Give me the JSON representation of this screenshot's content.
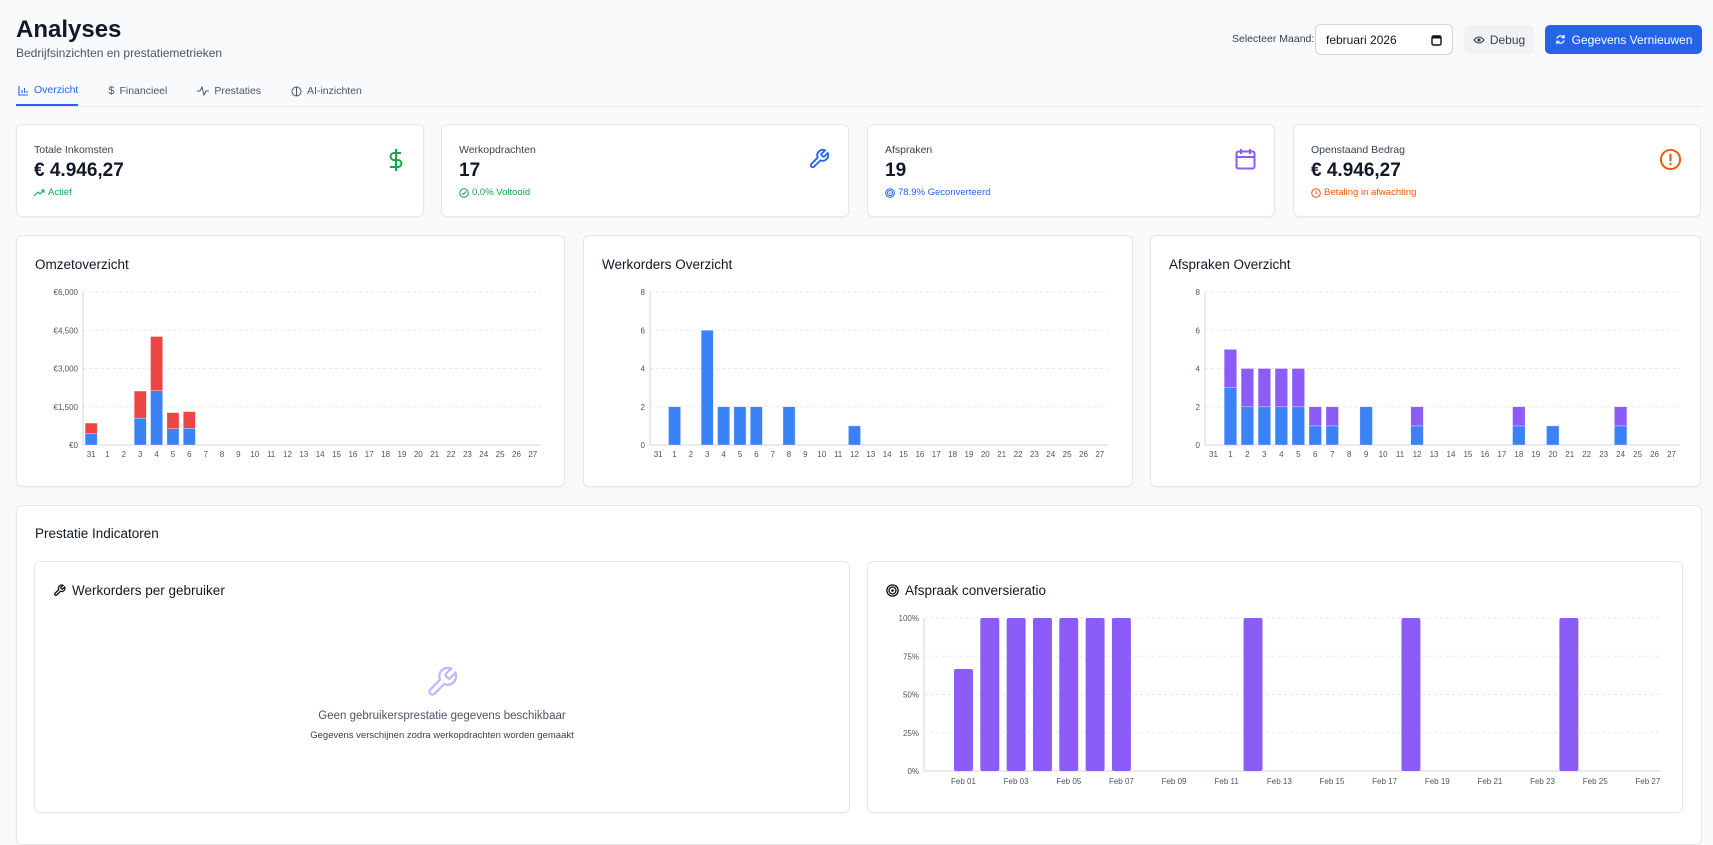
{
  "header": {
    "title": "Analyses",
    "subtitle": "Bedrijfsinzichten en prestatiemetrieken",
    "month_label": "Selecteer Maand:",
    "month_value": "februari 2026",
    "debug_label": "Debug",
    "refresh_label": "Gegevens Vernieuwen",
    "accent": "#2563eb"
  },
  "tabs": [
    {
      "label": "Overzicht",
      "icon": "bar-chart-icon",
      "active": true
    },
    {
      "label": "Financieel",
      "icon": "dollar-icon",
      "active": false
    },
    {
      "label": "Prestaties",
      "icon": "activity-icon",
      "active": false
    },
    {
      "label": "AI-inzichten",
      "icon": "brain-icon",
      "active": false
    }
  ],
  "stats": [
    {
      "label": "Totale Inkomsten",
      "value": "€ 4.946,27",
      "sub": "Actief",
      "icon": "dollar-icon",
      "sub_icon": "trending-up-icon",
      "color": "#16a34a"
    },
    {
      "label": "Werkopdrachten",
      "value": "17",
      "sub": "0.0% Voltooid",
      "icon": "wrench-icon",
      "sub_icon": "check-circle-icon",
      "color": "#2563eb",
      "sub_color": "#16a34a"
    },
    {
      "label": "Afspraken",
      "value": "19",
      "sub": "78.9% Geconverteerd",
      "icon": "calendar-icon",
      "sub_icon": "target-icon",
      "color": "#8b5cf6",
      "sub_color": "#2563eb"
    },
    {
      "label": "Openstaand Bedrag",
      "value": "€ 4.946,27",
      "sub": "Betaling in afwachting",
      "icon": "alert-circle-icon",
      "sub_icon": "clock-icon",
      "color": "#ea580c"
    }
  ],
  "performance": {
    "title": "Prestatie Indicatoren",
    "users_title": "Werkorders per gebruiker",
    "empty_title": "Geen gebruikersprestatie gegevens beschikbaar",
    "empty_sub": "Gegevens verschijnen zodra werkopdrachten worden gemaakt"
  },
  "chart_data": [
    {
      "type": "bar",
      "stacked": true,
      "title": "Omzetoverzicht",
      "categories": [
        "31",
        "1",
        "2",
        "3",
        "4",
        "5",
        "6",
        "7",
        "8",
        "9",
        "10",
        "11",
        "12",
        "13",
        "14",
        "15",
        "16",
        "17",
        "18",
        "19",
        "20",
        "21",
        "22",
        "23",
        "24",
        "25",
        "26",
        "27"
      ],
      "yticks": [
        "€0",
        "€1,500",
        "€3,000",
        "€4,500",
        "€6,000"
      ],
      "ylim": [
        0,
        6000
      ],
      "grid": true,
      "series": [
        {
          "color": "#3b82f6",
          "values": [
            450,
            0,
            0,
            1050,
            2130,
            640,
            655,
            0,
            0,
            0,
            0,
            0,
            0,
            0,
            0,
            0,
            0,
            0,
            0,
            0,
            0,
            0,
            0,
            0,
            0,
            0,
            0,
            0
          ]
        },
        {
          "color": "#ef4444",
          "values": [
            410,
            0,
            0,
            1065,
            2125,
            630,
            655,
            0,
            0,
            0,
            0,
            0,
            0,
            0,
            0,
            0,
            0,
            0,
            0,
            0,
            0,
            0,
            0,
            0,
            0,
            0,
            0,
            0
          ]
        }
      ]
    },
    {
      "type": "bar",
      "stacked": false,
      "title": "Werkorders Overzicht",
      "categories": [
        "31",
        "1",
        "2",
        "3",
        "4",
        "5",
        "6",
        "7",
        "8",
        "9",
        "10",
        "11",
        "12",
        "13",
        "14",
        "15",
        "16",
        "17",
        "18",
        "19",
        "20",
        "21",
        "22",
        "23",
        "24",
        "25",
        "26",
        "27"
      ],
      "yticks": [
        "0",
        "2",
        "4",
        "6",
        "8"
      ],
      "ylim": [
        0,
        8
      ],
      "grid": true,
      "series": [
        {
          "color": "#3b82f6",
          "values": [
            0,
            2,
            0,
            6,
            2,
            2,
            2,
            0,
            2,
            0,
            0,
            0,
            1,
            0,
            0,
            0,
            0,
            0,
            0,
            0,
            0,
            0,
            0,
            0,
            0,
            0,
            0,
            0
          ]
        }
      ]
    },
    {
      "type": "bar",
      "stacked": true,
      "title": "Afspraken Overzicht",
      "categories": [
        "31",
        "1",
        "2",
        "3",
        "4",
        "5",
        "6",
        "7",
        "8",
        "9",
        "10",
        "11",
        "12",
        "13",
        "14",
        "15",
        "16",
        "17",
        "18",
        "19",
        "20",
        "21",
        "22",
        "23",
        "24",
        "25",
        "26",
        "27"
      ],
      "yticks": [
        "0",
        "2",
        "4",
        "6",
        "8"
      ],
      "ylim": [
        0,
        8
      ],
      "grid": true,
      "series": [
        {
          "color": "#3b82f6",
          "values": [
            0,
            3,
            2,
            2,
            2,
            2,
            1,
            1,
            0,
            2,
            0,
            0,
            1,
            0,
            0,
            0,
            0,
            0,
            1,
            0,
            1,
            0,
            0,
            0,
            1,
            0,
            0,
            0
          ]
        },
        {
          "color": "#8b5cf6",
          "values": [
            0,
            2,
            2,
            2,
            2,
            2,
            1,
            1,
            0,
            0,
            0,
            0,
            1,
            0,
            0,
            0,
            0,
            0,
            1,
            0,
            0,
            0,
            0,
            0,
            1,
            0,
            0,
            0
          ]
        }
      ]
    },
    {
      "type": "bar",
      "title": "Afspraak conversieratio",
      "yticks": [
        "0%",
        "25%",
        "50%",
        "75%",
        "100%"
      ],
      "ylim": [
        0,
        100
      ],
      "grid": true,
      "xticks": [
        "Feb 01",
        "Feb 03",
        "Feb 05",
        "Feb 07",
        "Feb 09",
        "Feb 11",
        "Feb 13",
        "Feb 15",
        "Feb 17",
        "Feb 19",
        "Feb 21",
        "Feb 23",
        "Feb 25",
        "Feb 27"
      ],
      "color": "#8b5cf6",
      "bars": [
        {
          "date": "Feb 01",
          "value": 66.7
        },
        {
          "date": "Feb 02",
          "value": 100
        },
        {
          "date": "Feb 03",
          "value": 100
        },
        {
          "date": "Feb 04",
          "value": 100
        },
        {
          "date": "Feb 05",
          "value": 100
        },
        {
          "date": "Feb 06",
          "value": 100
        },
        {
          "date": "Feb 07",
          "value": 100
        },
        {
          "date": "Feb 12",
          "value": 100
        },
        {
          "date": "Feb 18",
          "value": 100
        },
        {
          "date": "Feb 24",
          "value": 100
        }
      ]
    }
  ]
}
